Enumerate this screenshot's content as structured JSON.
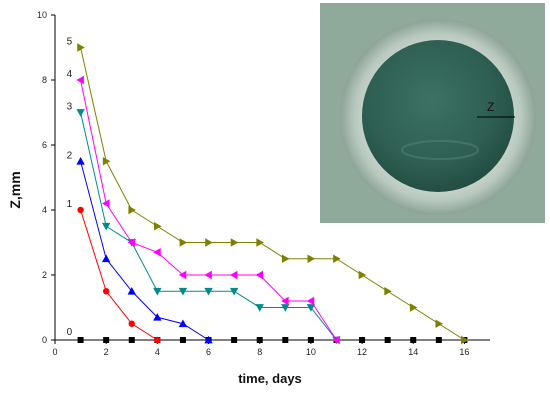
{
  "chart_data": {
    "type": "line",
    "xlabel": "time, days",
    "ylabel": "Z,mm",
    "xlim": [
      0,
      17
    ],
    "ylim": [
      0,
      10
    ],
    "xticks": [
      0,
      2,
      4,
      6,
      8,
      10,
      12,
      14,
      16
    ],
    "yticks": [
      0,
      2,
      4,
      6,
      8,
      10
    ],
    "grid": false,
    "series": [
      {
        "name": "0",
        "color": "#000000",
        "marker": "square",
        "x": [
          1,
          2,
          3,
          4,
          5,
          6,
          7,
          8,
          9,
          10,
          11,
          12,
          13,
          14,
          15,
          16
        ],
        "y": [
          0,
          0,
          0,
          0,
          0,
          0,
          0,
          0,
          0,
          0,
          0,
          0,
          0,
          0,
          0,
          0
        ],
        "dashed": true
      },
      {
        "name": "1",
        "color": "#ff0000",
        "marker": "circle",
        "x": [
          1,
          2,
          3,
          4
        ],
        "y": [
          4,
          1.5,
          0.5,
          0
        ]
      },
      {
        "name": "2",
        "color": "#0000ff",
        "marker": "triangle-up",
        "x": [
          1,
          2,
          3,
          4,
          5,
          6
        ],
        "y": [
          5.5,
          2.5,
          1.5,
          0.7,
          0.5,
          0
        ]
      },
      {
        "name": "3",
        "color": "#008b8b",
        "marker": "triangle-down",
        "x": [
          1,
          2,
          3,
          4,
          5,
          6,
          7,
          8,
          9,
          10,
          11
        ],
        "y": [
          7,
          3.5,
          3,
          1.5,
          1.5,
          1.5,
          1.5,
          1,
          1,
          1,
          0
        ]
      },
      {
        "name": "4",
        "color": "#ff00ff",
        "marker": "triangle-left",
        "x": [
          1,
          2,
          3,
          4,
          5,
          6,
          7,
          8,
          9,
          10,
          11
        ],
        "y": [
          8,
          4.2,
          3,
          2.7,
          2,
          2,
          2,
          2,
          1.2,
          1.2,
          0
        ]
      },
      {
        "name": "5",
        "color": "#808000",
        "marker": "triangle-right",
        "x": [
          1,
          2,
          3,
          4,
          5,
          6,
          7,
          8,
          9,
          10,
          11,
          12,
          13,
          14,
          15,
          16
        ],
        "y": [
          9,
          5.5,
          4,
          3.5,
          3,
          3,
          3,
          3,
          2.5,
          2.5,
          2.5,
          2,
          1.5,
          1,
          0.5,
          0
        ]
      }
    ],
    "inset": {
      "label": "Z"
    }
  }
}
